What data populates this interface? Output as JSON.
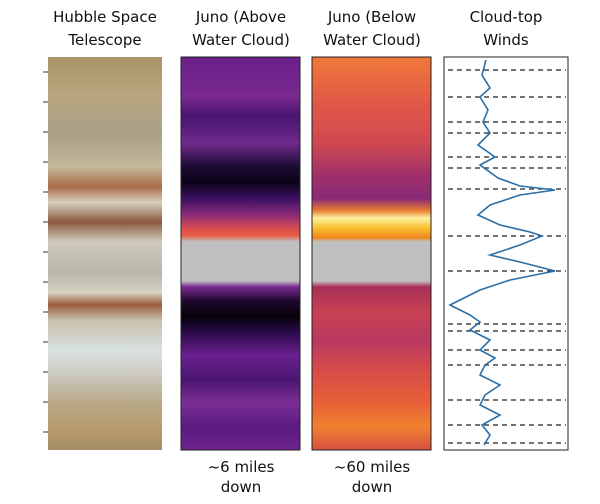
{
  "panels": [
    {
      "title_lines": [
        "Hubble Space",
        "Telescope"
      ]
    },
    {
      "title_lines": [
        "Juno (Above",
        "Water Cloud)"
      ],
      "caption_lines": [
        "~6 miles",
        "down"
      ]
    },
    {
      "title_lines": [
        "Juno (Below",
        "Water Cloud)"
      ],
      "caption_lines": [
        "~60 miles",
        "down"
      ]
    },
    {
      "title_lines": [
        "Cloud-top",
        "Winds"
      ]
    }
  ]
}
